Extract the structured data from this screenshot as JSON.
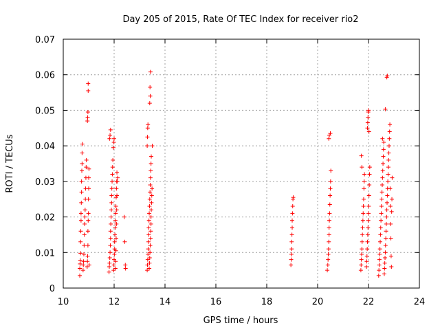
{
  "chart_data": {
    "type": "scatter",
    "title": "Day 205 of 2015, Rate Of TEC Index for receiver rio2",
    "xlabel": "GPS time / hours",
    "ylabel": "ROTI / TECUs",
    "xlim": [
      10,
      24
    ],
    "ylim": [
      0,
      0.07
    ],
    "xticks": [
      10,
      12,
      14,
      16,
      18,
      20,
      22,
      24
    ],
    "yticks": [
      0,
      0.01,
      0.02,
      0.03,
      0.04,
      0.05,
      0.06,
      0.07
    ],
    "xtick_labels": [
      "10",
      "12",
      "14",
      "16",
      "18",
      "20",
      "22",
      "24"
    ],
    "ytick_labels": [
      "0",
      "0.01",
      "0.02",
      "0.03",
      "0.04",
      "0.05",
      "0.06",
      "0.07"
    ],
    "grid": true,
    "marker": "+",
    "marker_color": "#ff0000",
    "series": [
      {
        "name": "ROTI",
        "points": [
          [
            10.65,
            0.0035
          ],
          [
            10.65,
            0.0055
          ],
          [
            10.66,
            0.0068
          ],
          [
            10.67,
            0.0078
          ],
          [
            10.68,
            0.0098
          ],
          [
            10.68,
            0.013
          ],
          [
            10.69,
            0.016
          ],
          [
            10.7,
            0.019
          ],
          [
            10.7,
            0.021
          ],
          [
            10.71,
            0.024
          ],
          [
            10.72,
            0.027
          ],
          [
            10.72,
            0.03
          ],
          [
            10.73,
            0.033
          ],
          [
            10.74,
            0.035
          ],
          [
            10.74,
            0.038
          ],
          [
            10.75,
            0.0405
          ],
          [
            10.78,
            0.005
          ],
          [
            10.79,
            0.0065
          ],
          [
            10.8,
            0.0075
          ],
          [
            10.81,
            0.0095
          ],
          [
            10.82,
            0.012
          ],
          [
            10.83,
            0.015
          ],
          [
            10.84,
            0.018
          ],
          [
            10.85,
            0.02
          ],
          [
            10.86,
            0.022
          ],
          [
            10.87,
            0.025
          ],
          [
            10.88,
            0.028
          ],
          [
            10.89,
            0.031
          ],
          [
            10.9,
            0.034
          ],
          [
            10.91,
            0.036
          ],
          [
            10.94,
            0.006
          ],
          [
            10.95,
            0.0075
          ],
          [
            10.96,
            0.009
          ],
          [
            10.97,
            0.012
          ],
          [
            10.97,
            0.016
          ],
          [
            10.98,
            0.019
          ],
          [
            10.99,
            0.021
          ],
          [
            10.99,
            0.025
          ],
          [
            11.0,
            0.028
          ],
          [
            11.0,
            0.031
          ],
          [
            11.01,
            0.0335
          ],
          [
            10.95,
            0.047
          ],
          [
            10.96,
            0.048
          ],
          [
            10.97,
            0.0495
          ],
          [
            10.98,
            0.0555
          ],
          [
            10.98,
            0.0575
          ],
          [
            11.02,
            0.0065
          ],
          [
            11.8,
            0.0045
          ],
          [
            11.81,
            0.006
          ],
          [
            11.82,
            0.007
          ],
          [
            11.83,
            0.0085
          ],
          [
            11.84,
            0.01
          ],
          [
            11.85,
            0.012
          ],
          [
            11.86,
            0.014
          ],
          [
            11.86,
            0.016
          ],
          [
            11.87,
            0.018
          ],
          [
            11.88,
            0.02
          ],
          [
            11.89,
            0.022
          ],
          [
            11.9,
            0.024
          ],
          [
            11.9,
            0.026
          ],
          [
            11.91,
            0.028
          ],
          [
            11.92,
            0.03
          ],
          [
            11.93,
            0.032
          ],
          [
            11.94,
            0.034
          ],
          [
            11.95,
            0.036
          ],
          [
            11.82,
            0.042
          ],
          [
            11.84,
            0.043
          ],
          [
            11.86,
            0.0445
          ],
          [
            11.98,
            0.005
          ],
          [
            11.99,
            0.0065
          ],
          [
            12.0,
            0.008
          ],
          [
            12.01,
            0.0095
          ],
          [
            12.02,
            0.011
          ],
          [
            12.02,
            0.013
          ],
          [
            12.03,
            0.015
          ],
          [
            12.04,
            0.017
          ],
          [
            12.05,
            0.019
          ],
          [
            12.06,
            0.021
          ],
          [
            12.07,
            0.023
          ],
          [
            12.08,
            0.0255
          ],
          [
            12.09,
            0.028
          ],
          [
            12.1,
            0.03
          ],
          [
            12.11,
            0.0325
          ],
          [
            11.97,
            0.0395
          ],
          [
            11.99,
            0.041
          ],
          [
            12.0,
            0.042
          ],
          [
            12.05,
            0.0055
          ],
          [
            12.06,
            0.0075
          ],
          [
            12.07,
            0.0105
          ],
          [
            12.08,
            0.014
          ],
          [
            12.09,
            0.018
          ],
          [
            12.1,
            0.022
          ],
          [
            12.11,
            0.026
          ],
          [
            12.12,
            0.03
          ],
          [
            12.14,
            0.031
          ],
          [
            12.4,
            0.02
          ],
          [
            12.42,
            0.013
          ],
          [
            12.44,
            0.0065
          ],
          [
            12.45,
            0.0055
          ],
          [
            13.3,
            0.005
          ],
          [
            13.31,
            0.0065
          ],
          [
            13.32,
            0.008
          ],
          [
            13.33,
            0.0095
          ],
          [
            13.34,
            0.011
          ],
          [
            13.35,
            0.013
          ],
          [
            13.36,
            0.015
          ],
          [
            13.36,
            0.017
          ],
          [
            13.37,
            0.019
          ],
          [
            13.38,
            0.021
          ],
          [
            13.39,
            0.023
          ],
          [
            13.4,
            0.025
          ],
          [
            13.41,
            0.027
          ],
          [
            13.42,
            0.029
          ],
          [
            13.43,
            0.031
          ],
          [
            13.44,
            0.033
          ],
          [
            13.45,
            0.035
          ],
          [
            13.46,
            0.037
          ],
          [
            13.3,
            0.04
          ],
          [
            13.31,
            0.0425
          ],
          [
            13.32,
            0.045
          ],
          [
            13.33,
            0.046
          ],
          [
            13.38,
            0.0055
          ],
          [
            13.39,
            0.007
          ],
          [
            13.4,
            0.0085
          ],
          [
            13.41,
            0.01
          ],
          [
            13.42,
            0.012
          ],
          [
            13.43,
            0.014
          ],
          [
            13.44,
            0.016
          ],
          [
            13.45,
            0.018
          ],
          [
            13.45,
            0.02
          ],
          [
            13.46,
            0.022
          ],
          [
            13.47,
            0.024
          ],
          [
            13.48,
            0.026
          ],
          [
            13.49,
            0.028
          ],
          [
            13.5,
            0.04
          ],
          [
            13.4,
            0.052
          ],
          [
            13.42,
            0.054
          ],
          [
            13.41,
            0.0565
          ],
          [
            13.43,
            0.0608
          ],
          [
            18.95,
            0.0065
          ],
          [
            18.96,
            0.008
          ],
          [
            18.97,
            0.0095
          ],
          [
            18.98,
            0.011
          ],
          [
            18.98,
            0.013
          ],
          [
            18.99,
            0.015
          ],
          [
            19.0,
            0.017
          ],
          [
            19.0,
            0.019
          ],
          [
            19.01,
            0.021
          ],
          [
            19.02,
            0.023
          ],
          [
            19.03,
            0.025
          ],
          [
            19.04,
            0.0255
          ],
          [
            20.38,
            0.005
          ],
          [
            20.4,
            0.0065
          ],
          [
            20.41,
            0.008
          ],
          [
            20.42,
            0.0095
          ],
          [
            20.43,
            0.011
          ],
          [
            20.44,
            0.013
          ],
          [
            20.45,
            0.015
          ],
          [
            20.45,
            0.017
          ],
          [
            20.46,
            0.019
          ],
          [
            20.47,
            0.021
          ],
          [
            20.48,
            0.0235
          ],
          [
            20.49,
            0.026
          ],
          [
            20.5,
            0.028
          ],
          [
            20.51,
            0.03
          ],
          [
            20.52,
            0.033
          ],
          [
            20.44,
            0.042
          ],
          [
            20.46,
            0.043
          ],
          [
            20.5,
            0.0435
          ],
          [
            21.7,
            0.005
          ],
          [
            21.71,
            0.0065
          ],
          [
            21.72,
            0.008
          ],
          [
            21.73,
            0.0095
          ],
          [
            21.74,
            0.011
          ],
          [
            21.75,
            0.013
          ],
          [
            21.76,
            0.015
          ],
          [
            21.77,
            0.017
          ],
          [
            21.78,
            0.019
          ],
          [
            21.79,
            0.021
          ],
          [
            21.8,
            0.023
          ],
          [
            21.81,
            0.025
          ],
          [
            21.82,
            0.028
          ],
          [
            21.83,
            0.03
          ],
          [
            21.84,
            0.032
          ],
          [
            21.74,
            0.034
          ],
          [
            21.72,
            0.0372
          ],
          [
            21.92,
            0.006
          ],
          [
            21.93,
            0.0075
          ],
          [
            21.94,
            0.009
          ],
          [
            21.95,
            0.011
          ],
          [
            21.96,
            0.013
          ],
          [
            21.97,
            0.015
          ],
          [
            21.98,
            0.017
          ],
          [
            21.99,
            0.019
          ],
          [
            22.0,
            0.021
          ],
          [
            22.01,
            0.023
          ],
          [
            22.02,
            0.026
          ],
          [
            22.03,
            0.029
          ],
          [
            22.04,
            0.032
          ],
          [
            22.05,
            0.034
          ],
          [
            21.96,
            0.045
          ],
          [
            21.97,
            0.0465
          ],
          [
            21.98,
            0.048
          ],
          [
            21.99,
            0.0495
          ],
          [
            22.0,
            0.05
          ],
          [
            22.02,
            0.044
          ],
          [
            22.4,
            0.0035
          ],
          [
            22.41,
            0.005
          ],
          [
            22.42,
            0.0065
          ],
          [
            22.43,
            0.008
          ],
          [
            22.44,
            0.0095
          ],
          [
            22.45,
            0.011
          ],
          [
            22.46,
            0.013
          ],
          [
            22.47,
            0.015
          ],
          [
            22.48,
            0.017
          ],
          [
            22.49,
            0.019
          ],
          [
            22.5,
            0.021
          ],
          [
            22.51,
            0.023
          ],
          [
            22.52,
            0.025
          ],
          [
            22.53,
            0.027
          ],
          [
            22.54,
            0.029
          ],
          [
            22.55,
            0.031
          ],
          [
            22.56,
            0.033
          ],
          [
            22.57,
            0.035
          ],
          [
            22.58,
            0.037
          ],
          [
            22.59,
            0.039
          ],
          [
            22.6,
            0.041
          ],
          [
            22.55,
            0.042
          ],
          [
            22.62,
            0.004
          ],
          [
            22.63,
            0.0055
          ],
          [
            22.64,
            0.007
          ],
          [
            22.65,
            0.0085
          ],
          [
            22.66,
            0.01
          ],
          [
            22.67,
            0.012
          ],
          [
            22.68,
            0.014
          ],
          [
            22.69,
            0.016
          ],
          [
            22.7,
            0.018
          ],
          [
            22.71,
            0.02
          ],
          [
            22.72,
            0.022
          ],
          [
            22.73,
            0.024
          ],
          [
            22.74,
            0.026
          ],
          [
            22.75,
            0.028
          ],
          [
            22.76,
            0.03
          ],
          [
            22.77,
            0.032
          ],
          [
            22.78,
            0.034
          ],
          [
            22.79,
            0.036
          ],
          [
            22.8,
            0.038
          ],
          [
            22.81,
            0.04
          ],
          [
            22.82,
            0.042
          ],
          [
            22.83,
            0.044
          ],
          [
            22.84,
            0.046
          ],
          [
            22.66,
            0.0503
          ],
          [
            22.72,
            0.0593
          ],
          [
            22.74,
            0.0597
          ],
          [
            22.85,
            0.028
          ],
          [
            22.86,
            0.023
          ],
          [
            22.87,
            0.018
          ],
          [
            22.88,
            0.014
          ],
          [
            22.89,
            0.009
          ],
          [
            22.9,
            0.006
          ],
          [
            22.92,
            0.025
          ],
          [
            22.93,
            0.031
          ],
          [
            22.91,
            0.0215
          ]
        ]
      }
    ]
  }
}
